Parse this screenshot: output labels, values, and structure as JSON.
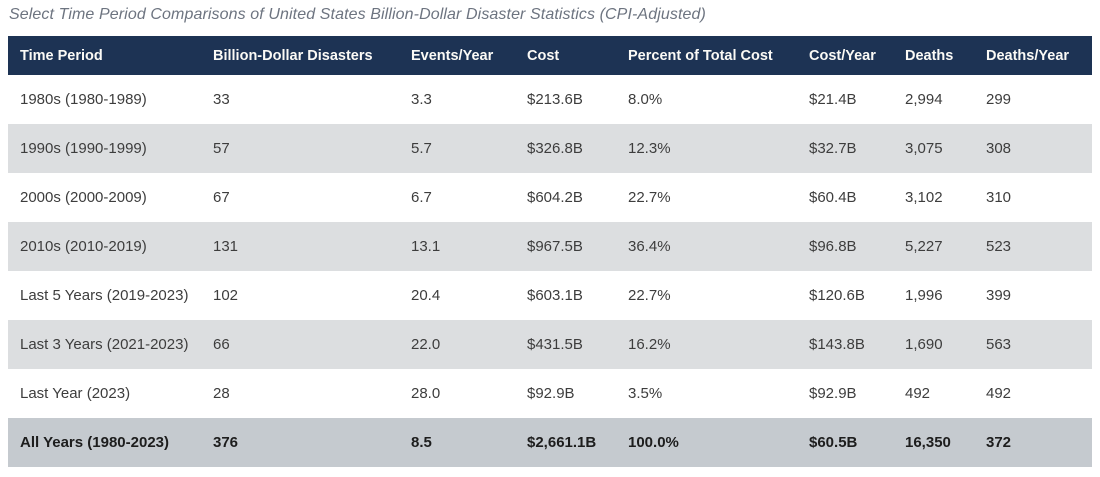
{
  "chart_data": {
    "type": "table",
    "title": "Select Time Period Comparisons of United States Billion-Dollar Disaster Statistics (CPI-Adjusted)",
    "columns": [
      "Time Period",
      "Billion-Dollar Disasters",
      "Events/Year",
      "Cost",
      "Percent of Total Cost",
      "Cost/Year",
      "Deaths",
      "Deaths/Year"
    ],
    "rows": [
      [
        "1980s (1980-1989)",
        "33",
        "3.3",
        "$213.6B",
        "8.0%",
        "$21.4B",
        "2,994",
        "299"
      ],
      [
        "1990s (1990-1999)",
        "57",
        "5.7",
        "$326.8B",
        "12.3%",
        "$32.7B",
        "3,075",
        "308"
      ],
      [
        "2000s (2000-2009)",
        "67",
        "6.7",
        "$604.2B",
        "22.7%",
        "$60.4B",
        "3,102",
        "310"
      ],
      [
        "2010s (2010-2019)",
        "131",
        "13.1",
        "$967.5B",
        "36.4%",
        "$96.8B",
        "5,227",
        "523"
      ],
      [
        "Last 5 Years (2019-2023)",
        "102",
        "20.4",
        "$603.1B",
        "22.7%",
        "$120.6B",
        "1,996",
        "399"
      ],
      [
        "Last 3 Years (2021-2023)",
        "66",
        "22.0",
        "$431.5B",
        "16.2%",
        "$143.8B",
        "1,690",
        "563"
      ],
      [
        "Last Year (2023)",
        "28",
        "28.0",
        "$92.9B",
        "3.5%",
        "$92.9B",
        "492",
        "492"
      ],
      [
        "All Years (1980-2023)",
        "376",
        "8.5",
        "$2,661.1B",
        "100.0%",
        "$60.5B",
        "16,350",
        "372"
      ]
    ],
    "total_row_label": "All Years (1980-2023)",
    "layout": {
      "striped": true,
      "header_position": "top",
      "alignment": "left"
    }
  },
  "colors": {
    "header_bg": "#1d3354",
    "header_text": "#fbfaf6",
    "row_bg": "#ffffff",
    "row_alt_bg": "#dcdee0",
    "total_row_bg": "#c5cacf",
    "body_text": "#3d3d3d",
    "total_text": "#1d1d1d",
    "title_color": "#6d7480"
  }
}
